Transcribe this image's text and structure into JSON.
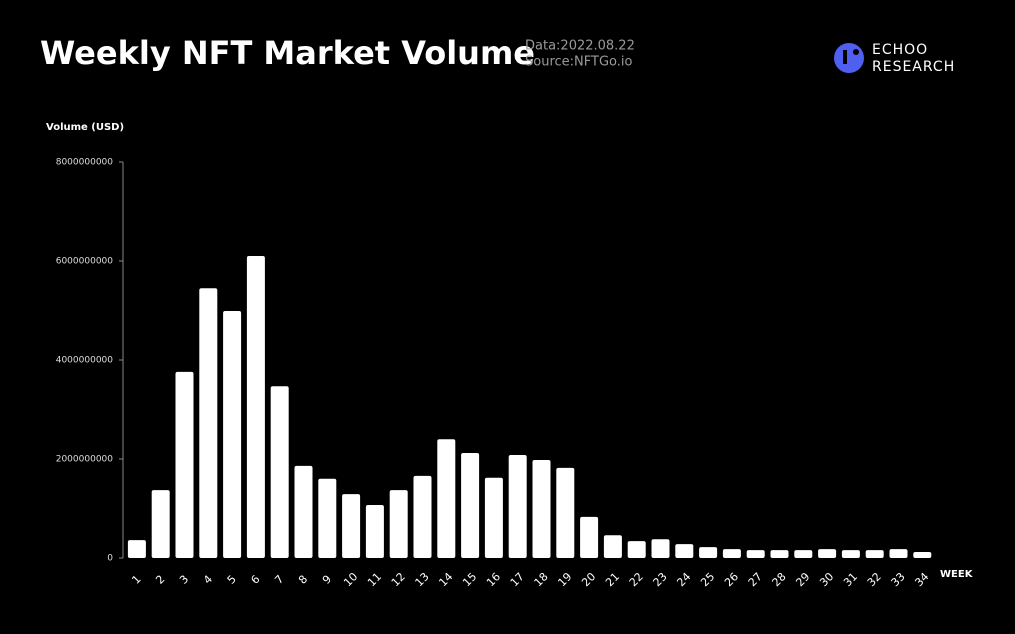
{
  "brand": {
    "line1": "ECHOO",
    "line2": "RESEARCH"
  },
  "chart_data": {
    "type": "bar",
    "title": "Weekly NFT Market Volume",
    "date_note": "Data:2022.08.22",
    "source": "Source:NFTGo.io",
    "y_label": "Volume  (USD)",
    "x_label": "WEEK",
    "categories": [
      "1",
      "2",
      "3",
      "4",
      "5",
      "6",
      "7",
      "8",
      "9",
      "10",
      "11",
      "12",
      "13",
      "14",
      "15",
      "16",
      "17",
      "18",
      "19",
      "20",
      "21",
      "22",
      "23",
      "24",
      "25",
      "26",
      "27",
      "28",
      "29",
      "30",
      "31",
      "32",
      "33",
      "34"
    ],
    "values": [
      360000000,
      1370000000,
      3760000000,
      5450000000,
      4990000000,
      6100000000,
      3470000000,
      1860000000,
      1600000000,
      1290000000,
      1070000000,
      1370000000,
      1660000000,
      2400000000,
      2120000000,
      1620000000,
      2080000000,
      1980000000,
      1820000000,
      830000000,
      460000000,
      340000000,
      380000000,
      280000000,
      220000000,
      180000000,
      160000000,
      160000000,
      160000000,
      180000000,
      160000000,
      160000000,
      180000000,
      120000000
    ],
    "color": "#ffffff",
    "ylim": [
      0,
      8000000000
    ],
    "yticks": [
      0,
      2000000000,
      4000000000,
      6000000000,
      8000000000
    ],
    "grid": false
  }
}
